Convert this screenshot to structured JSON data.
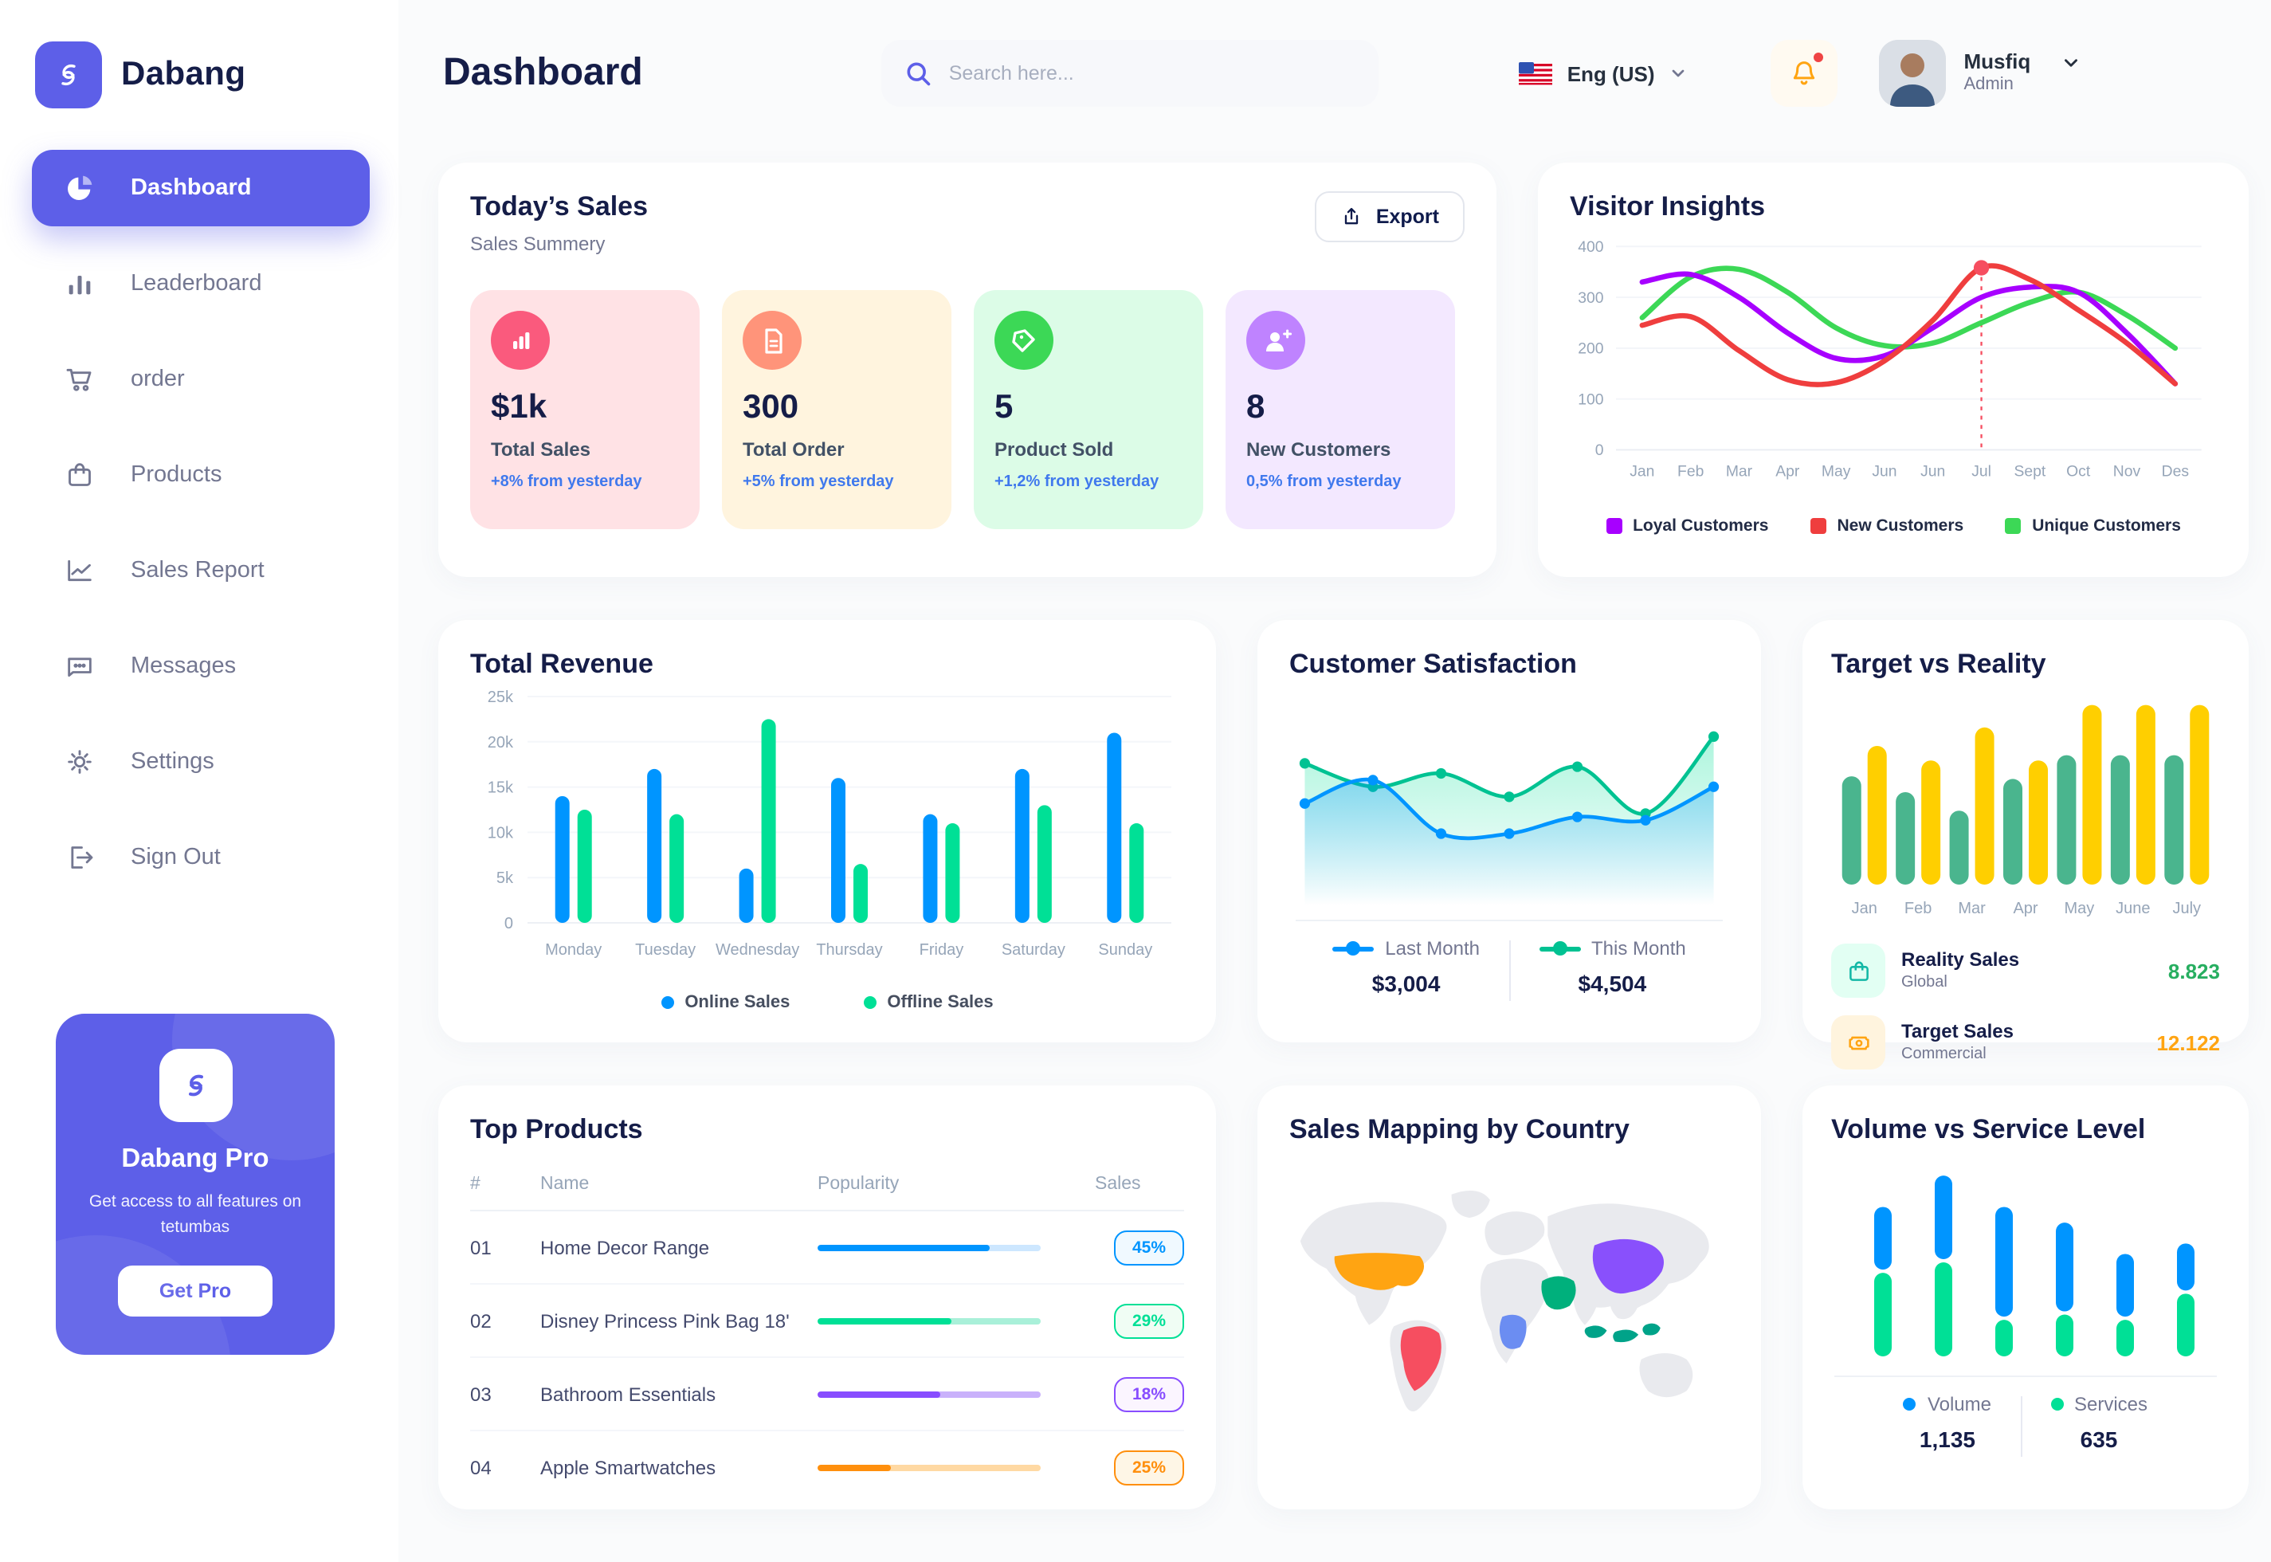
{
  "app": {
    "brand": "Dabang",
    "primary_color": "#5D5FE8"
  },
  "header": {
    "title": "Dashboard",
    "search_placeholder": "Search here...",
    "language": "Eng (US)",
    "user": {
      "name": "Musfiq",
      "role": "Admin"
    }
  },
  "sidebar": {
    "items": [
      {
        "label": "Dashboard",
        "icon": "pie-chart-icon",
        "active": true
      },
      {
        "label": "Leaderboard",
        "icon": "bar-chart-icon",
        "active": false
      },
      {
        "label": "order",
        "icon": "cart-icon",
        "active": false
      },
      {
        "label": "Products",
        "icon": "bag-icon",
        "active": false
      },
      {
        "label": "Sales Report",
        "icon": "line-chart-icon",
        "active": false
      },
      {
        "label": "Messages",
        "icon": "chat-icon",
        "active": false
      },
      {
        "label": "Settings",
        "icon": "gear-icon",
        "active": false
      },
      {
        "label": "Sign Out",
        "icon": "sign-out-icon",
        "active": false
      }
    ],
    "pro_card": {
      "title": "Dabang Pro",
      "description": "Get access to all features on tetumbas",
      "button": "Get Pro"
    }
  },
  "todays_sales": {
    "title": "Today’s Sales",
    "subtitle": "Sales Summery",
    "export_label": "Export",
    "stats": [
      {
        "value": "$1k",
        "label": "Total Sales",
        "delta": "+8% from yesterday",
        "bg": "#FFE2E5",
        "icon_bg": "#FA5A7D",
        "icon": "chart-bar-icon"
      },
      {
        "value": "300",
        "label": "Total Order",
        "delta": "+5% from yesterday",
        "bg": "#FFF4DE",
        "icon_bg": "#FF947A",
        "icon": "file-icon"
      },
      {
        "value": "5",
        "label": "Product Sold",
        "delta": "+1,2% from yesterday",
        "bg": "#DCFCE7",
        "icon_bg": "#3CD856",
        "icon": "tag-icon"
      },
      {
        "value": "8",
        "label": "New Customers",
        "delta": "0,5% from yesterday",
        "bg": "#F3E8FF",
        "icon_bg": "#BF83FF",
        "icon": "user-plus-icon"
      }
    ]
  },
  "top_products": {
    "title": "Top Products",
    "columns": [
      "#",
      "Name",
      "Popularity",
      "Sales"
    ],
    "rows": [
      {
        "num": "01",
        "name": "Home Decor Range",
        "progress": 77,
        "sales": "45%",
        "color": "#0095FF",
        "track": "#CDE7FF",
        "badge_bg": "#F0F9FF"
      },
      {
        "num": "02",
        "name": "Disney Princess Pink Bag 18'",
        "progress": 60,
        "sales": "29%",
        "color": "#00E096",
        "track": "#A9F0D9",
        "badge_bg": "#F0FDF4"
      },
      {
        "num": "03",
        "name": "Bathroom Essentials",
        "progress": 55,
        "sales": "18%",
        "color": "#884DFF",
        "track": "#C9B1FB",
        "badge_bg": "#FBF5FF"
      },
      {
        "num": "04",
        "name": "Apple Smartwatches",
        "progress": 33,
        "sales": "25%",
        "color": "#FF8F0D",
        "track": "#FFD9A3",
        "badge_bg": "#FEF6E6"
      }
    ]
  },
  "chart_data": [
    {
      "id": "visitor_insights",
      "type": "line",
      "title": "Visitor Insights",
      "x": [
        "Jan",
        "Feb",
        "Mar",
        "Apr",
        "May",
        "Jun",
        "Jun",
        "Jul",
        "Sept",
        "Oct",
        "Nov",
        "Des"
      ],
      "ylim": [
        0,
        400
      ],
      "yticks": [
        0,
        100,
        200,
        300,
        400
      ],
      "grid": true,
      "legend_position": "bottom",
      "series": [
        {
          "name": "Loyal Customers",
          "color": "#A700FF",
          "values": [
            330,
            345,
            300,
            230,
            180,
            185,
            240,
            300,
            320,
            310,
            230,
            130
          ]
        },
        {
          "name": "New Customers",
          "color": "#EF3E3E",
          "values": [
            245,
            262,
            195,
            138,
            132,
            175,
            255,
            358,
            335,
            275,
            210,
            130
          ]
        },
        {
          "name": "Unique Customers",
          "color": "#3CD856",
          "values": [
            260,
            340,
            355,
            310,
            240,
            205,
            210,
            250,
            290,
            310,
            265,
            200
          ]
        }
      ],
      "annotation": {
        "series": "New Customers",
        "x_index": 7,
        "style": "dashed-vertical-line-with-dot"
      }
    },
    {
      "id": "total_revenue",
      "type": "bar",
      "title": "Total Revenue",
      "categories": [
        "Monday",
        "Tuesday",
        "Wednesday",
        "Thursday",
        "Friday",
        "Saturday",
        "Sunday"
      ],
      "ylim": [
        0,
        25000
      ],
      "ytick_labels": [
        "0",
        "5k",
        "10k",
        "15k",
        "20k",
        "25k"
      ],
      "grid": true,
      "legend_position": "bottom",
      "series": [
        {
          "name": "Online Sales",
          "color": "#0095FF",
          "values": [
            14000,
            17000,
            6000,
            16000,
            12000,
            17000,
            21000
          ]
        },
        {
          "name": "Offline Sales",
          "color": "#00E096",
          "values": [
            12500,
            12000,
            22500,
            6500,
            11000,
            13000,
            11000
          ]
        }
      ]
    },
    {
      "id": "customer_satisfaction",
      "type": "area",
      "title": "Customer Satisfaction",
      "ylim": [
        0,
        100
      ],
      "legend_position": "bottom",
      "series": [
        {
          "name": "Last Month",
          "total": "$3,004",
          "color": "#0095FF",
          "values": [
            48,
            62,
            30,
            30,
            40,
            38,
            58
          ]
        },
        {
          "name": "This Month",
          "total": "$4,504",
          "color": "#00C292",
          "values": [
            72,
            58,
            66,
            52,
            70,
            42,
            88
          ]
        }
      ]
    },
    {
      "id": "target_vs_reality",
      "type": "bar",
      "title": "Target vs Reality",
      "categories": [
        "Jan",
        "Feb",
        "Mar",
        "Apr",
        "May",
        "June",
        "July"
      ],
      "ylim": [
        0,
        14
      ],
      "series": [
        {
          "name": "Reality Sales",
          "subtitle": "Global",
          "value": "8.823",
          "value_color": "#27AE60",
          "color": "#4AB58E",
          "icon_bg": "#E2FFF3",
          "values": [
            8.2,
            7.0,
            5.6,
            8.0,
            9.8,
            9.8,
            9.8
          ]
        },
        {
          "name": "Target Sales",
          "subtitle": "Commercial",
          "value": "12.122",
          "value_color": "#FFA412",
          "color": "#FFCF00",
          "icon_bg": "#FFF4DE",
          "values": [
            10.5,
            9.4,
            11.9,
            9.4,
            13.6,
            13.6,
            13.6
          ]
        }
      ]
    },
    {
      "id": "volume_vs_service",
      "type": "stacked-bar",
      "title": "Volume vs Service Level",
      "ylim": [
        0,
        18
      ],
      "legend_position": "bottom",
      "series": [
        {
          "name": "Volume",
          "total": "1,135",
          "color": "#0095FF",
          "values": [
            6,
            8,
            10.5,
            8.5,
            6,
            4.5
          ]
        },
        {
          "name": "Services",
          "total": "635",
          "color": "#00E096",
          "values": [
            8,
            9,
            3.5,
            4,
            3.5,
            6
          ]
        }
      ]
    },
    {
      "id": "sales_mapping",
      "type": "map",
      "title": "Sales Mapping by Country",
      "countries": [
        {
          "name": "United States",
          "color": "#FFA412"
        },
        {
          "name": "Brazil",
          "color": "#F64E60"
        },
        {
          "name": "DR Congo",
          "color": "#6B8DF2"
        },
        {
          "name": "Saudi Arabia",
          "color": "#00B07C"
        },
        {
          "name": "China",
          "color": "#8950FC"
        },
        {
          "name": "Indonesia",
          "color": "#00A389"
        }
      ]
    }
  ]
}
